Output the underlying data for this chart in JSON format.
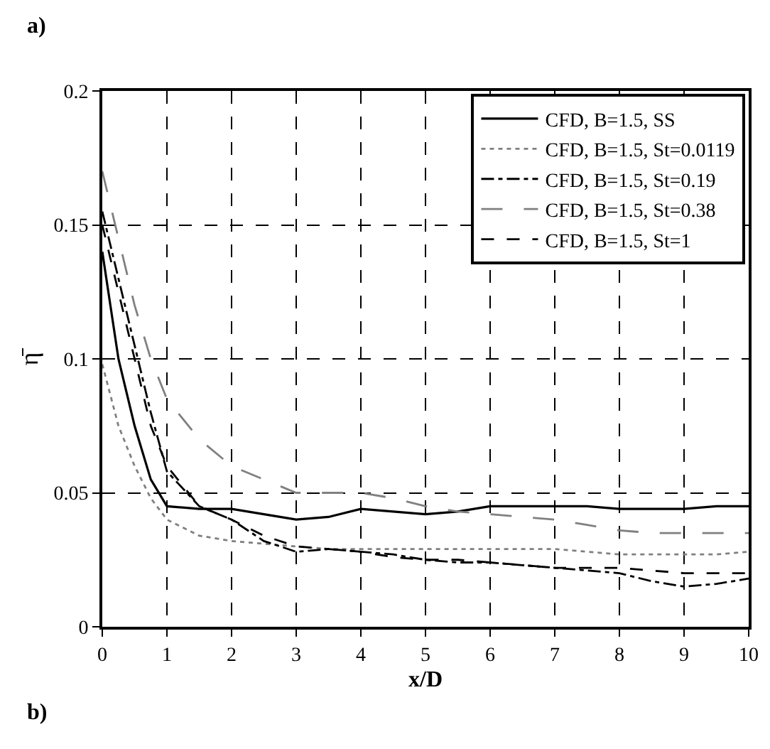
{
  "chart_data": {
    "type": "line",
    "xlabel": "x/D",
    "ylabel": "η̄",
    "annotations": [
      "a)",
      "b)"
    ],
    "xlim": [
      0,
      10
    ],
    "xticks": [
      0,
      1,
      2,
      3,
      4,
      5,
      6,
      7,
      8,
      9,
      10
    ],
    "ylim": [
      0,
      0.2
    ],
    "yticks": [
      0,
      0.05,
      0.1,
      0.15,
      0.2
    ],
    "grid": true,
    "legend": "top right",
    "marker": "none",
    "x": [
      0,
      0.25,
      0.5,
      0.75,
      1,
      1.5,
      2,
      2.5,
      3,
      3.5,
      4,
      4.5,
      5,
      5.5,
      6,
      6.5,
      7,
      7.5,
      8,
      8.5,
      9,
      9.5,
      10
    ],
    "series": [
      {
        "name": "CFD, B=1.5, SS",
        "color": "#000000",
        "line_style": "solid",
        "values": [
          0.14,
          0.1,
          0.075,
          0.055,
          0.045,
          0.044,
          0.044,
          0.042,
          0.04,
          0.041,
          0.044,
          0.043,
          0.042,
          0.043,
          0.045,
          0.045,
          0.045,
          0.045,
          0.044,
          0.044,
          0.044,
          0.045,
          0.045
        ]
      },
      {
        "name": "CFD, B=1.5, St=0.0119",
        "color": "#808080",
        "line_style": "dotted",
        "values": [
          0.098,
          0.075,
          0.06,
          0.048,
          0.04,
          0.034,
          0.032,
          0.031,
          0.03,
          0.029,
          0.029,
          0.029,
          0.029,
          0.029,
          0.029,
          0.029,
          0.029,
          0.028,
          0.027,
          0.027,
          0.027,
          0.027,
          0.028
        ]
      },
      {
        "name": "CFD, B=1.5, St=0.19",
        "color": "#000000",
        "line_style": "dashdot",
        "values": [
          0.155,
          0.13,
          0.105,
          0.08,
          0.058,
          0.045,
          0.04,
          0.032,
          0.028,
          0.029,
          0.028,
          0.027,
          0.025,
          0.024,
          0.024,
          0.023,
          0.022,
          0.021,
          0.02,
          0.017,
          0.015,
          0.016,
          0.018
        ]
      },
      {
        "name": "CFD, B=1.5, St=0.38",
        "color": "#808080",
        "line_style": "longdash",
        "values": [
          0.17,
          0.145,
          0.12,
          0.1,
          0.085,
          0.07,
          0.06,
          0.055,
          0.05,
          0.05,
          0.05,
          0.048,
          0.045,
          0.043,
          0.042,
          0.041,
          0.04,
          0.038,
          0.036,
          0.035,
          0.035,
          0.035,
          0.035
        ]
      },
      {
        "name": "CFD, B=1.5, St=1",
        "color": "#000000",
        "line_style": "dashed",
        "values": [
          0.15,
          0.125,
          0.1,
          0.075,
          0.06,
          0.045,
          0.04,
          0.034,
          0.03,
          0.029,
          0.028,
          0.026,
          0.025,
          0.025,
          0.024,
          0.023,
          0.022,
          0.022,
          0.022,
          0.021,
          0.02,
          0.02,
          0.02
        ]
      }
    ]
  }
}
